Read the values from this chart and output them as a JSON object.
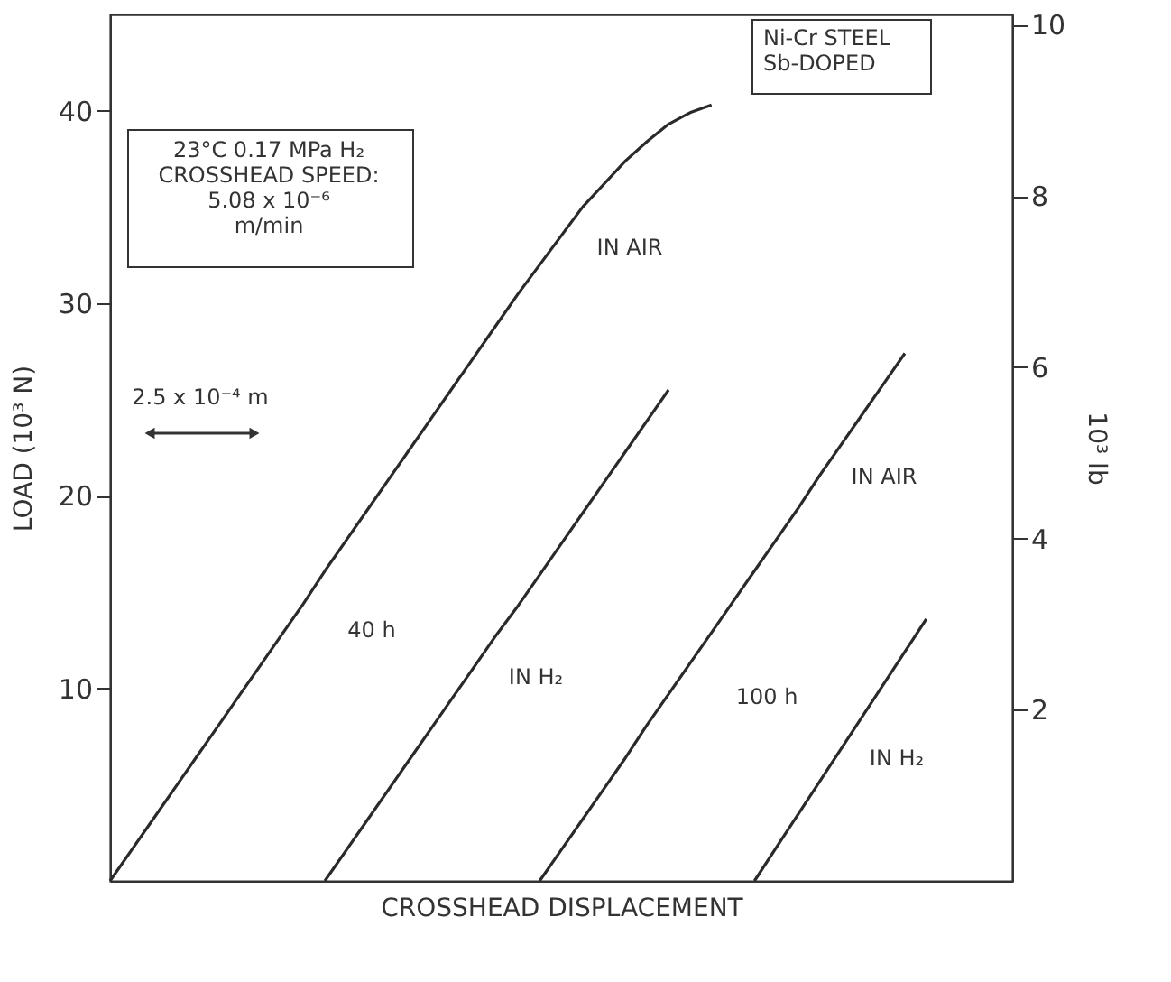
{
  "chart_data": {
    "type": "line",
    "xlabel": "CROSSHEAD DISPLACEMENT",
    "ylabel": "LOAD (10³ N)",
    "y2label": "10³ lb",
    "categories": [
      null,
      null,
      null,
      null,
      null,
      null,
      null,
      null,
      null,
      null,
      null,
      null,
      null,
      null,
      null,
      null,
      null,
      null,
      null,
      null,
      null,
      null,
      null,
      null,
      null,
      null,
      null,
      null,
      null,
      null,
      null,
      null,
      null,
      null,
      null,
      null,
      null,
      null,
      null,
      null,
      null,
      null,
      null
    ],
    "ylim": [
      0,
      45
    ],
    "yticks": [
      10,
      20,
      30,
      40
    ],
    "y2lim": [
      0,
      10.12
    ],
    "y2ticks": [
      2,
      4,
      6,
      8,
      10
    ],
    "tick_labels": "y",
    "grid": false,
    "line_style": "solid",
    "series": [
      {
        "color": "#2a2a2a",
        "values": [
          0,
          1.6,
          3.2,
          4.8,
          6.4,
          8.0,
          9.6,
          11.2,
          12.8,
          14.4,
          16.1,
          17.7,
          19.3,
          20.9,
          22.5,
          24.1,
          25.7,
          27.3,
          28.9,
          30.5,
          32.0,
          33.5,
          35.0,
          36.2,
          37.4,
          38.4,
          39.3,
          39.9,
          40.3,
          null,
          null,
          null,
          null,
          null,
          null,
          null,
          null,
          null,
          null,
          null,
          null,
          null,
          null
        ]
      },
      {
        "color": "#2a2a2a",
        "values": [
          null,
          null,
          null,
          null,
          null,
          null,
          null,
          null,
          null,
          null,
          0,
          1.6,
          3.2,
          4.8,
          6.4,
          8.0,
          9.6,
          11.2,
          12.8,
          14.3,
          15.9,
          17.5,
          19.1,
          20.7,
          22.3,
          23.9,
          25.5,
          null,
          null,
          null,
          null,
          null,
          null,
          null,
          null,
          null,
          null,
          null,
          null,
          null,
          null,
          null,
          null
        ]
      },
      {
        "color": "#2a2a2a",
        "values": [
          null,
          null,
          null,
          null,
          null,
          null,
          null,
          null,
          null,
          null,
          null,
          null,
          null,
          null,
          null,
          null,
          null,
          null,
          null,
          null,
          0,
          1.6,
          3.2,
          4.8,
          6.4,
          8.1,
          9.7,
          11.3,
          12.9,
          14.5,
          16.1,
          17.7,
          19.3,
          21.0,
          22.6,
          24.2,
          25.8,
          27.4,
          null,
          null,
          null,
          null,
          null
        ]
      },
      {
        "color": "#2a2a2a",
        "values": [
          null,
          null,
          null,
          null,
          null,
          null,
          null,
          null,
          null,
          null,
          null,
          null,
          null,
          null,
          null,
          null,
          null,
          null,
          null,
          null,
          null,
          null,
          null,
          null,
          null,
          null,
          null,
          null,
          null,
          null,
          0,
          1.7,
          3.4,
          5.1,
          6.8,
          8.5,
          10.2,
          11.9,
          13.6,
          null,
          null,
          null,
          null
        ]
      }
    ],
    "annotations": [
      "IN AIR",
      "40 h",
      "IN H₂",
      "IN AIR",
      "100 h",
      "IN H₂",
      "23°C 0.17 MPa H₂\nCROSSHEAD SPEED:\n5.08 x 10⁻⁶\nm/min",
      "Ni-Cr STEEL\nSb-DOPED",
      "2.5 x 10⁻⁴ m"
    ]
  }
}
